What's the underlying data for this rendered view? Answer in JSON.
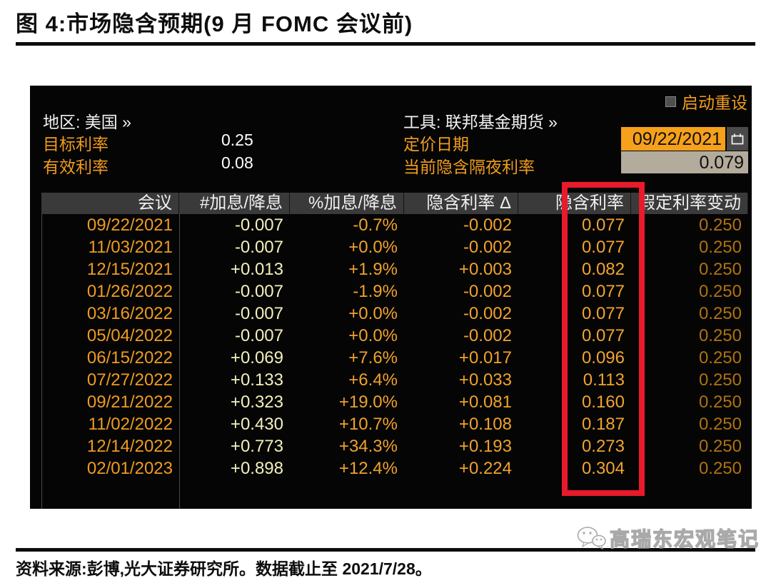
{
  "figure": {
    "title": "图 4:市场隐含预期(9 月 FOMC 会议前)",
    "source": "资料来源:彭博,光大证券研究所。数据截止至 2021/7/28。",
    "watermark": "高瑞东宏观笔记"
  },
  "terminal": {
    "reset_label": "启动重设",
    "region": "地区: 美国 »",
    "tool": "工具: 联邦基金期货 »",
    "fields": {
      "target_rate_label": "目标利率",
      "target_rate_value": "0.25",
      "effective_rate_label": "有效利率",
      "effective_rate_value": "0.08",
      "pricing_date_label": "定价日期",
      "pricing_date_value": "09/22/2021",
      "implied_overnight_label": "当前隐含隔夜利率",
      "implied_overnight_value": "0.079"
    }
  },
  "chart_data": {
    "type": "table",
    "title": "市场隐含预期(9 月 FOMC 会议前)",
    "headers": [
      "会议",
      "#加息/降息",
      "%加息/降息",
      "隐含利率 Δ",
      "隐含利率",
      "假定利率变动"
    ],
    "highlighted_column": "隐含利率",
    "rows": [
      [
        "09/22/2021",
        "-0.007",
        "-0.7%",
        "-0.002",
        "0.077",
        "0.250"
      ],
      [
        "11/03/2021",
        "-0.007",
        "+0.0%",
        "-0.002",
        "0.077",
        "0.250"
      ],
      [
        "12/15/2021",
        "+0.013",
        "+1.9%",
        "+0.003",
        "0.082",
        "0.250"
      ],
      [
        "01/26/2022",
        "-0.007",
        "-1.9%",
        "-0.002",
        "0.077",
        "0.250"
      ],
      [
        "03/16/2022",
        "-0.007",
        "+0.0%",
        "-0.002",
        "0.077",
        "0.250"
      ],
      [
        "05/04/2022",
        "-0.007",
        "+0.0%",
        "-0.002",
        "0.077",
        "0.250"
      ],
      [
        "06/15/2022",
        "+0.069",
        "+7.6%",
        "+0.017",
        "0.096",
        "0.250"
      ],
      [
        "07/27/2022",
        "+0.133",
        "+6.4%",
        "+0.033",
        "0.113",
        "0.250"
      ],
      [
        "09/21/2022",
        "+0.323",
        "+19.0%",
        "+0.081",
        "0.160",
        "0.250"
      ],
      [
        "11/02/2022",
        "+0.430",
        "+10.7%",
        "+0.108",
        "0.187",
        "0.250"
      ],
      [
        "12/14/2022",
        "+0.773",
        "+34.3%",
        "+0.193",
        "0.273",
        "0.250"
      ],
      [
        "02/01/2023",
        "+0.898",
        "+12.4%",
        "+0.224",
        "0.304",
        "0.250"
      ]
    ]
  },
  "colors": {
    "accent_orange": "#f09c1e",
    "pale_yellow": "#f3f0ba",
    "amber": "#f0a22c",
    "dim_orange": "#b0720f",
    "highlight_red": "#e81a2b",
    "date_box_bg": "#f6a01b",
    "overnight_box_bg": "#b3ab9b"
  }
}
